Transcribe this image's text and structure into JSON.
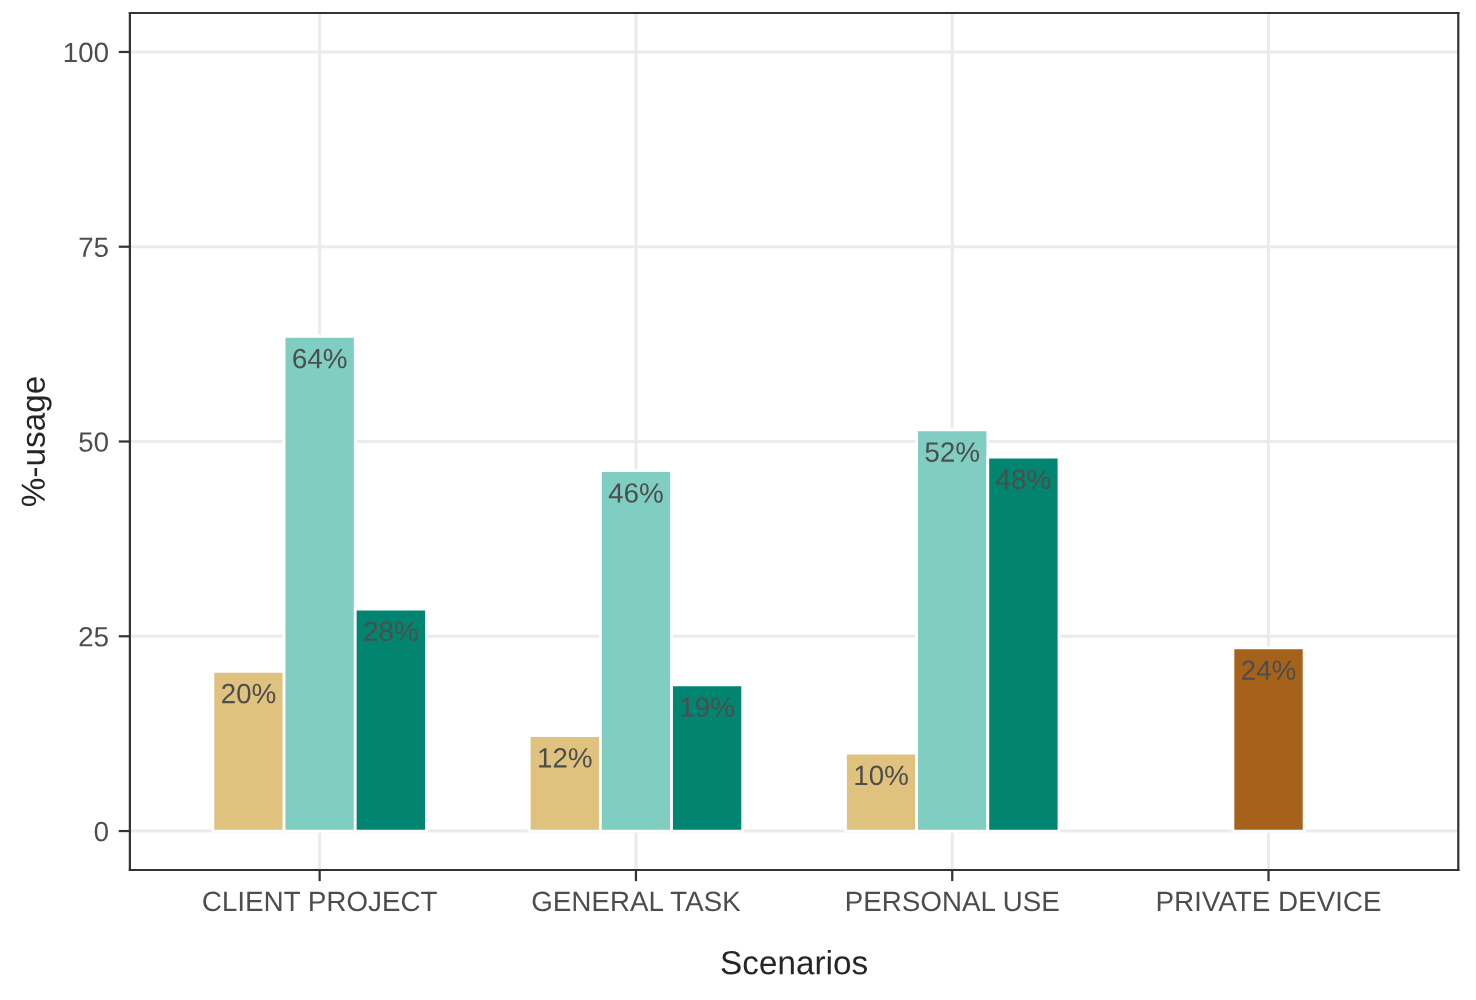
{
  "chart_data": {
    "type": "bar",
    "xlabel": "Scenarios",
    "ylabel": "%-usage",
    "categories": [
      "CLIENT PROJECT",
      "GENERAL TASK",
      "PERSONAL USE",
      "PRIVATE DEVICE"
    ],
    "series": [
      {
        "color": "#dfc27d",
        "values": [
          20.5,
          12.25,
          10,
          null
        ],
        "value_labels": [
          "20%",
          "12%",
          "10%",
          null
        ]
      },
      {
        "color": "#80cdc1",
        "values": [
          63.5,
          46.25,
          51.5,
          null
        ],
        "value_labels": [
          "64%",
          "46%",
          "52%",
          null
        ]
      },
      {
        "color": "#018571",
        "values": [
          28.5,
          18.75,
          48,
          null
        ],
        "value_labels": [
          "28%",
          "19%",
          "48%",
          null
        ]
      },
      {
        "color": "#a6611a",
        "values": [
          null,
          null,
          null,
          23.5
        ],
        "value_labels": [
          null,
          null,
          null,
          "24%"
        ]
      }
    ],
    "ylim": [
      -5,
      105
    ],
    "yticks": [
      0,
      25,
      50,
      75,
      100
    ],
    "grid": true,
    "legend": false
  }
}
